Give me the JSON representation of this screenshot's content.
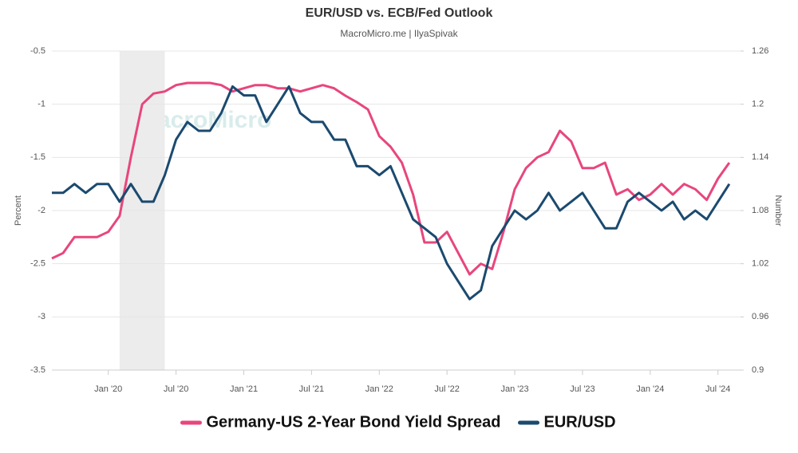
{
  "chart_data": {
    "type": "line",
    "title": "EUR/USD vs. ECB/Fed Outlook",
    "subtitle": "MacroMicro.me | IlyaSpivak",
    "watermark": "MacroMicro",
    "y_label": "Percent",
    "y2_label": "Number",
    "x": [
      "2019-08",
      "2019-09",
      "2019-10",
      "2019-11",
      "2019-12",
      "2020-01",
      "2020-02",
      "2020-03",
      "2020-04",
      "2020-05",
      "2020-06",
      "2020-07",
      "2020-08",
      "2020-09",
      "2020-10",
      "2020-11",
      "2020-12",
      "2021-01",
      "2021-02",
      "2021-03",
      "2021-04",
      "2021-05",
      "2021-06",
      "2021-07",
      "2021-08",
      "2021-09",
      "2021-10",
      "2021-11",
      "2021-12",
      "2022-01",
      "2022-02",
      "2022-03",
      "2022-04",
      "2022-05",
      "2022-06",
      "2022-07",
      "2022-08",
      "2022-09",
      "2022-10",
      "2022-11",
      "2022-12",
      "2023-01",
      "2023-02",
      "2023-03",
      "2023-04",
      "2023-05",
      "2023-06",
      "2023-07",
      "2023-08",
      "2023-09",
      "2023-10",
      "2023-11",
      "2023-12",
      "2024-01",
      "2024-02",
      "2024-03",
      "2024-04",
      "2024-05",
      "2024-06",
      "2024-07",
      "2024-08"
    ],
    "series": [
      {
        "name": "Germany-US 2-Year Bond Yield Spread",
        "color": "#e8467c",
        "axis": "y",
        "values": [
          -2.45,
          -2.4,
          -2.25,
          -2.25,
          -2.25,
          -2.2,
          -2.05,
          -1.5,
          -1.0,
          -0.9,
          -0.88,
          -0.82,
          -0.8,
          -0.8,
          -0.8,
          -0.82,
          -0.88,
          -0.85,
          -0.82,
          -0.82,
          -0.85,
          -0.85,
          -0.88,
          -0.85,
          -0.82,
          -0.85,
          -0.92,
          -0.98,
          -1.05,
          -1.3,
          -1.4,
          -1.55,
          -1.85,
          -2.3,
          -2.3,
          -2.2,
          -2.4,
          -2.6,
          -2.5,
          -2.55,
          -2.2,
          -1.8,
          -1.6,
          -1.5,
          -1.45,
          -1.25,
          -1.35,
          -1.6,
          -1.6,
          -1.55,
          -1.85,
          -1.8,
          -1.9,
          -1.85,
          -1.75,
          -1.85,
          -1.75,
          -1.8,
          -1.9,
          -1.7,
          -1.55
        ]
      },
      {
        "name": "EUR/USD",
        "color": "#1b4a6f",
        "axis": "y2",
        "values": [
          1.1,
          1.1,
          1.11,
          1.1,
          1.11,
          1.11,
          1.09,
          1.11,
          1.09,
          1.09,
          1.12,
          1.16,
          1.18,
          1.17,
          1.17,
          1.19,
          1.22,
          1.21,
          1.21,
          1.18,
          1.2,
          1.22,
          1.19,
          1.18,
          1.18,
          1.16,
          1.16,
          1.13,
          1.13,
          1.12,
          1.13,
          1.1,
          1.07,
          1.06,
          1.05,
          1.02,
          1.0,
          0.98,
          0.99,
          1.04,
          1.06,
          1.08,
          1.07,
          1.08,
          1.1,
          1.08,
          1.09,
          1.1,
          1.08,
          1.06,
          1.06,
          1.09,
          1.1,
          1.09,
          1.08,
          1.09,
          1.07,
          1.08,
          1.07,
          1.09,
          1.11
        ]
      }
    ],
    "shaded_range": [
      "2020-02",
      "2020-06"
    ],
    "xlim": [
      "2019-08",
      "2024-09"
    ],
    "xticks": [
      {
        "value": "2020-01",
        "label": "Jan '20"
      },
      {
        "value": "2020-07",
        "label": "Jul '20"
      },
      {
        "value": "2021-01",
        "label": "Jan '21"
      },
      {
        "value": "2021-07",
        "label": "Jul '21"
      },
      {
        "value": "2022-01",
        "label": "Jan '22"
      },
      {
        "value": "2022-07",
        "label": "Jul '22"
      },
      {
        "value": "2023-01",
        "label": "Jan '23"
      },
      {
        "value": "2023-07",
        "label": "Jul '23"
      },
      {
        "value": "2024-01",
        "label": "Jan '24"
      },
      {
        "value": "2024-07",
        "label": "Jul '24"
      }
    ],
    "ylim": [
      -3.5,
      -0.5
    ],
    "yticks": [
      -3.5,
      -3,
      -2.5,
      -2,
      -1.5,
      -1,
      -0.5
    ],
    "y2lim": [
      0.9,
      1.26
    ],
    "y2ticks": [
      0.9,
      0.96,
      1.02,
      1.08,
      1.14,
      1.2,
      1.26
    ],
    "grid": true
  }
}
